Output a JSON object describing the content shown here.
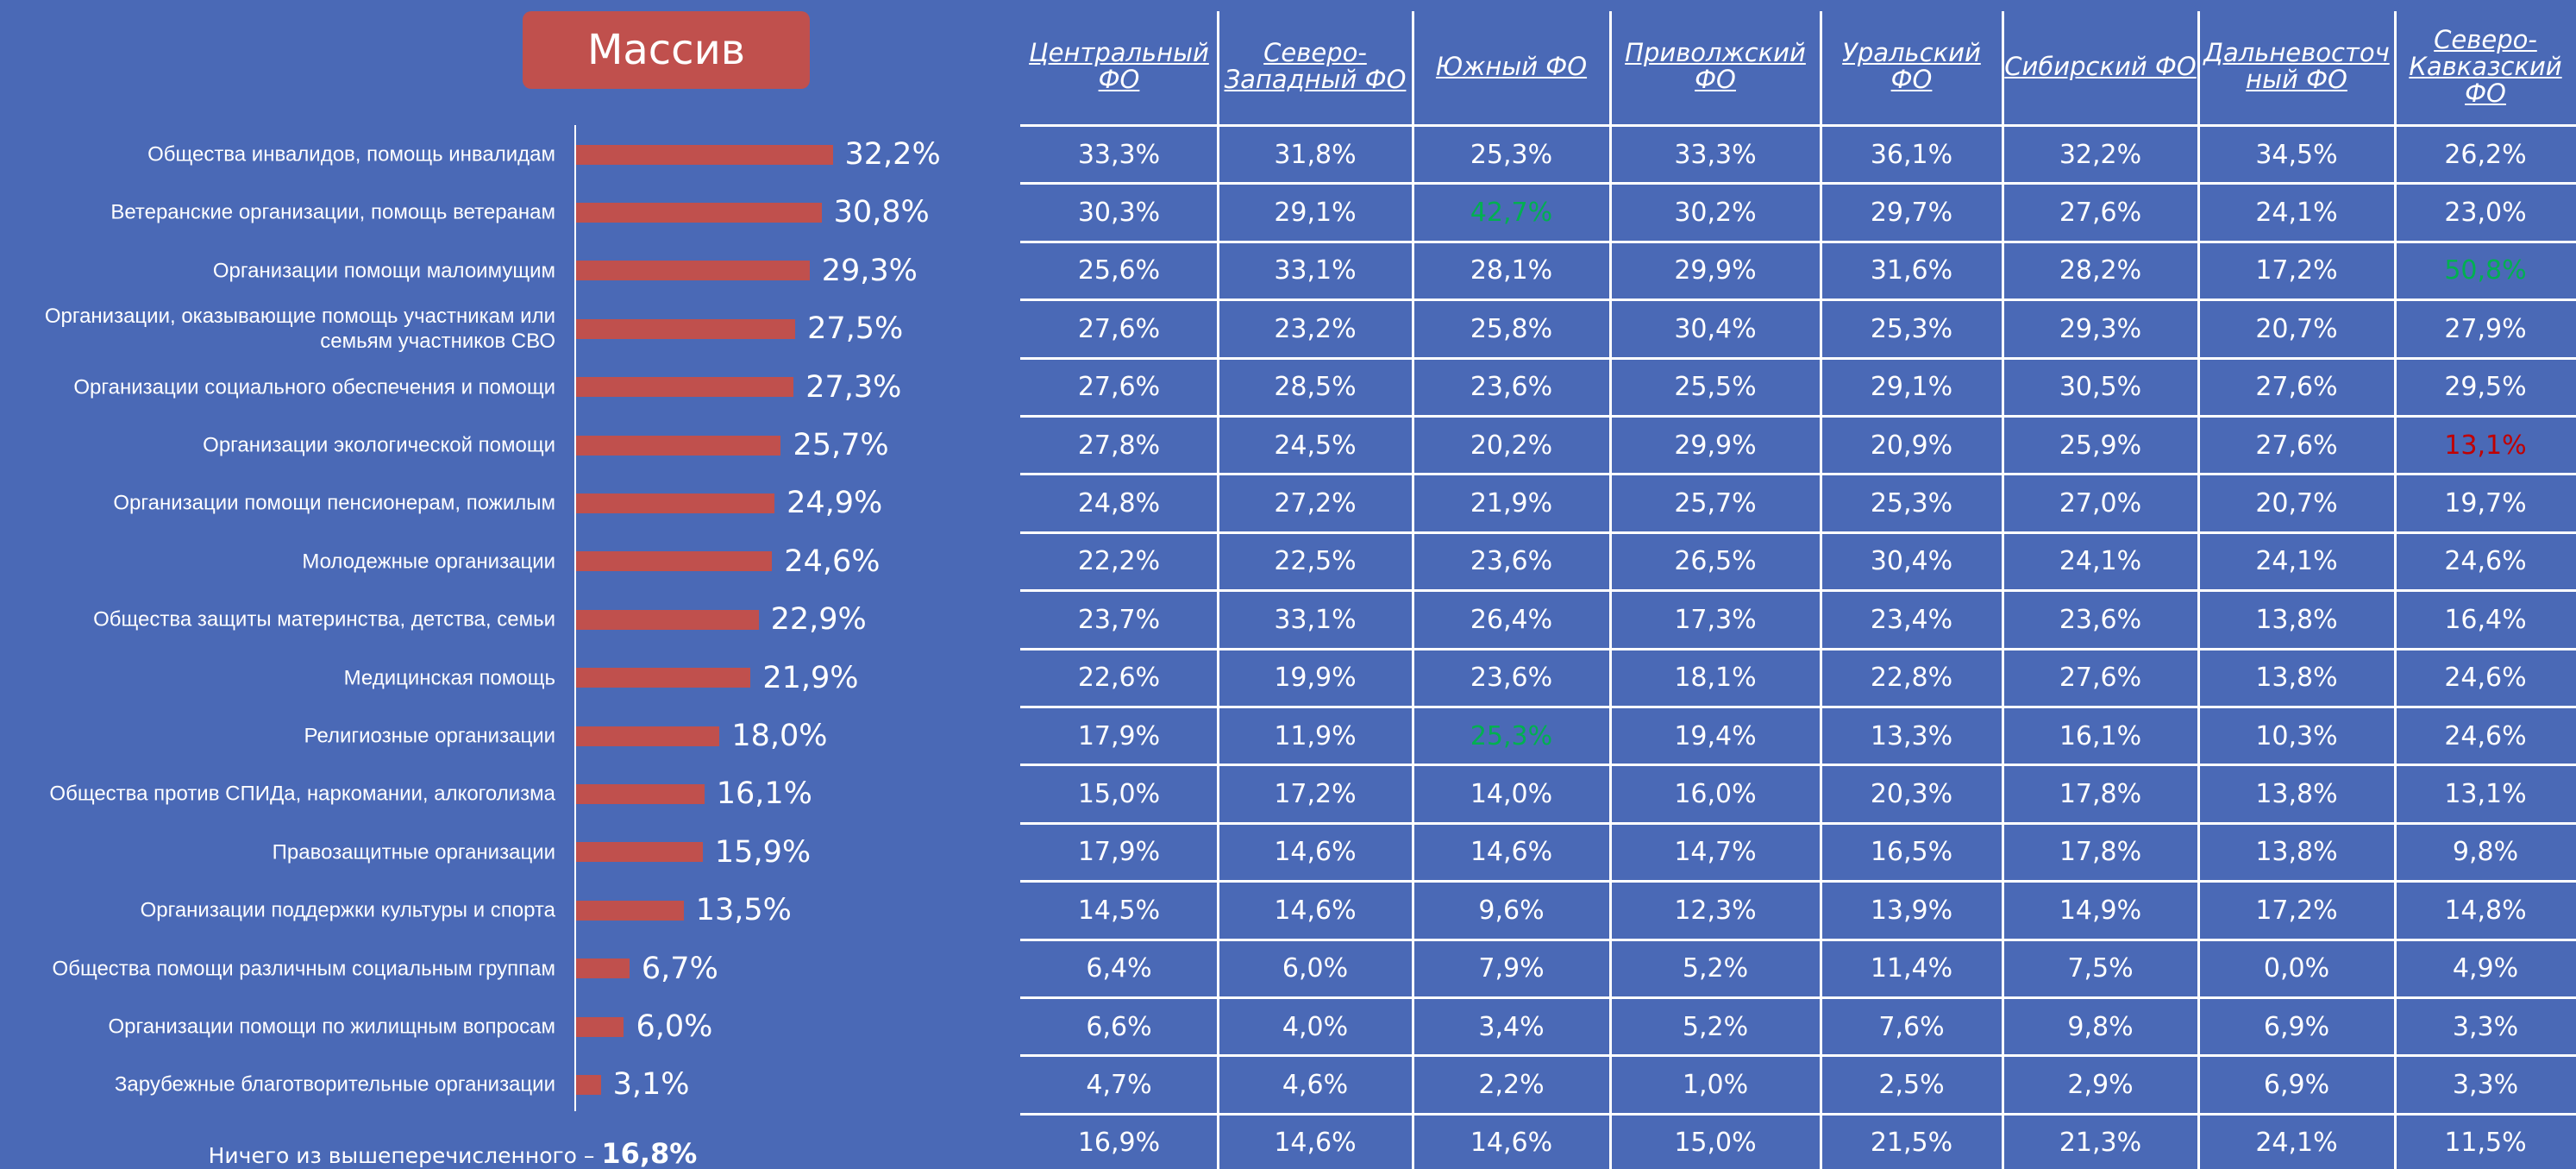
{
  "chart_data": {
    "type": "hbar",
    "title": "Массив",
    "color": "#c0504d",
    "categories": [
      "Общества инвалидов, помощь инвалидам",
      "Ветеранские организации, помощь ветеранам",
      "Организации помощи малоимущим",
      "Организации, оказывающие помощь участникам или семьям участников СВО",
      "Организации социального обеспечения и помощи",
      "Организации экологической помощи",
      "Организации помощи пенсионерам, пожилым",
      "Молодежные организации",
      "Общества защиты материнства, детства, семьи",
      "Медицинская помощь",
      "Религиозные организации",
      "Общества против СПИДа, наркомании, алкоголизма",
      "Правозащитные организации",
      "Организации поддержки культуры и спорта",
      "Общества помощи различным социальным группам",
      "Организации помощи по жилищным вопросам",
      "Зарубежные благотворительные организации"
    ],
    "values": [
      32.2,
      30.8,
      29.3,
      27.5,
      27.3,
      25.7,
      24.9,
      24.6,
      22.9,
      21.9,
      18.0,
      16.1,
      15.9,
      13.5,
      6.7,
      6.0,
      3.1
    ],
    "value_labels": [
      "32,2%",
      "30,8%",
      "29,3%",
      "27,5%",
      "27,3%",
      "25,7%",
      "24,9%",
      "24,6%",
      "22,9%",
      "21,9%",
      "18,0%",
      "16,1%",
      "15,9%",
      "13,5%",
      "6,7%",
      "6,0%",
      "3,1%"
    ]
  },
  "footnote": {
    "text": "Ничего из вышеперечисленного –",
    "value_label": "16,8%"
  },
  "table": {
    "columns": [
      "Центральный ФО",
      "Северо-Западный ФО",
      "Южный ФО",
      "Приволжский ФО",
      "Уральский ФО",
      "Сибирский ФО",
      "Дальневосточный ФО",
      "Северо-Кавказский ФО"
    ],
    "rows": [
      [
        "33,3%",
        "31,8%",
        "25,3%",
        "33,3%",
        "36,1%",
        "32,2%",
        "34,5%",
        "26,2%"
      ],
      [
        "30,3%",
        "29,1%",
        {
          "text": "42,7%",
          "color": "#00b050"
        },
        "30,2%",
        "29,7%",
        "27,6%",
        "24,1%",
        "23,0%"
      ],
      [
        "25,6%",
        "33,1%",
        "28,1%",
        "29,9%",
        "31,6%",
        "28,2%",
        "17,2%",
        {
          "text": "50,8%",
          "color": "#00b050"
        }
      ],
      [
        "27,6%",
        "23,2%",
        "25,8%",
        "30,4%",
        "25,3%",
        "29,3%",
        "20,7%",
        "27,9%"
      ],
      [
        "27,6%",
        "28,5%",
        "23,6%",
        "25,5%",
        "29,1%",
        "30,5%",
        "27,6%",
        "29,5%"
      ],
      [
        "27,8%",
        "24,5%",
        "20,2%",
        "29,9%",
        "20,9%",
        "25,9%",
        "27,6%",
        {
          "text": "13,1%",
          "color": "#c00000"
        }
      ],
      [
        "24,8%",
        "27,2%",
        "21,9%",
        "25,7%",
        "25,3%",
        "27,0%",
        "20,7%",
        "19,7%"
      ],
      [
        "22,2%",
        "22,5%",
        "23,6%",
        "26,5%",
        "30,4%",
        "24,1%",
        "24,1%",
        "24,6%"
      ],
      [
        "23,7%",
        "33,1%",
        "26,4%",
        "17,3%",
        "23,4%",
        "23,6%",
        "13,8%",
        "16,4%"
      ],
      [
        "22,6%",
        "19,9%",
        "23,6%",
        "18,1%",
        "22,8%",
        "27,6%",
        "13,8%",
        "24,6%"
      ],
      [
        "17,9%",
        "11,9%",
        {
          "text": "25,3%",
          "color": "#00b050"
        },
        "19,4%",
        "13,3%",
        "16,1%",
        "10,3%",
        "24,6%"
      ],
      [
        "15,0%",
        "17,2%",
        "14,0%",
        "16,0%",
        "20,3%",
        "17,8%",
        "13,8%",
        "13,1%"
      ],
      [
        "17,9%",
        "14,6%",
        "14,6%",
        "14,7%",
        "16,5%",
        "17,8%",
        "13,8%",
        "9,8%"
      ],
      [
        "14,5%",
        "14,6%",
        "9,6%",
        "12,3%",
        "13,9%",
        "14,9%",
        "17,2%",
        "14,8%"
      ],
      [
        "6,4%",
        "6,0%",
        "7,9%",
        "5,2%",
        "11,4%",
        "7,5%",
        "0,0%",
        "4,9%"
      ],
      [
        "6,6%",
        "4,0%",
        "3,4%",
        "5,2%",
        "7,6%",
        "9,8%",
        "6,9%",
        "3,3%"
      ],
      [
        "4,7%",
        "4,6%",
        "2,2%",
        "1,0%",
        "2,5%",
        "2,9%",
        "6,9%",
        "3,3%"
      ],
      [
        "16,9%",
        "14,6%",
        "14,6%",
        "15,0%",
        "21,5%",
        "21,3%",
        "24,1%",
        "11,5%"
      ]
    ]
  }
}
